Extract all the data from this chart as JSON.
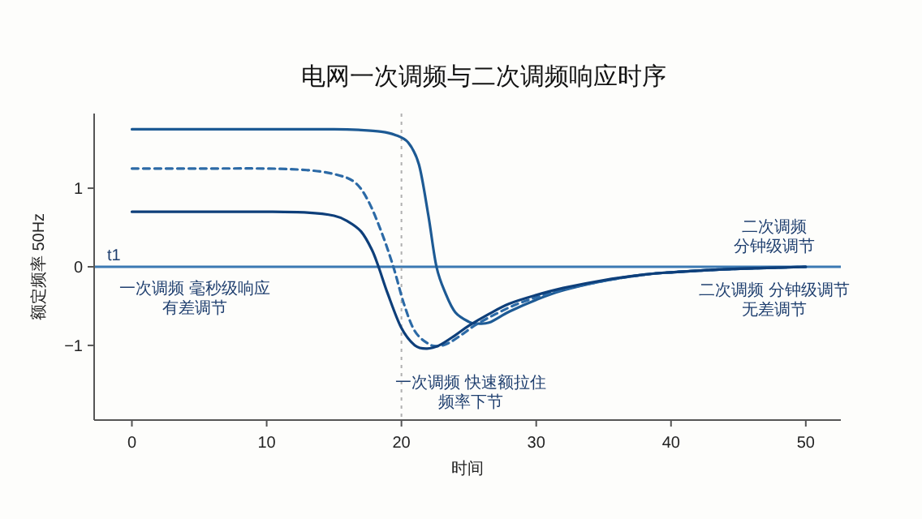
{
  "chart_data": {
    "type": "line",
    "title": "电网一次调频与二次调频响应时序",
    "xlabel": "时间",
    "ylabel": "额定频率 50Hz",
    "xlim": [
      -2.8,
      52.6
    ],
    "ylim": [
      -1.95,
      1.95
    ],
    "xticks": [
      0,
      10,
      20,
      30,
      40,
      50
    ],
    "yticks": [
      -1,
      0,
      1
    ],
    "marker": "none",
    "series": [
      {
        "color": "#1d5a94",
        "line_style": "solid",
        "x": [
          0,
          5,
          10,
          15,
          17,
          18.5,
          19.5,
          20.5,
          21.3,
          22,
          22.6,
          23.3,
          24,
          25,
          25.5,
          26.5,
          28,
          30,
          32,
          35,
          38,
          40,
          43,
          46,
          50
        ],
        "values": [
          1.75,
          1.75,
          1.75,
          1.75,
          1.74,
          1.72,
          1.68,
          1.58,
          1.3,
          0.65,
          0.0,
          -0.35,
          -0.58,
          -0.7,
          -0.72,
          -0.71,
          -0.57,
          -0.42,
          -0.3,
          -0.18,
          -0.1,
          -0.07,
          -0.04,
          -0.02,
          0
        ]
      },
      {
        "color": "#2c6aa6",
        "line_style": "dashed",
        "x": [
          0,
          5,
          10,
          13,
          15,
          16.5,
          17.5,
          18.5,
          19.4,
          20.2,
          21,
          22,
          22.7,
          23.5,
          24.5,
          25.5,
          27,
          28.5,
          30,
          32,
          35,
          38,
          40,
          43,
          46,
          50
        ],
        "values": [
          1.25,
          1.25,
          1.25,
          1.23,
          1.18,
          1.08,
          0.85,
          0.45,
          0.0,
          -0.48,
          -0.82,
          -0.98,
          -1.01,
          -0.97,
          -0.86,
          -0.74,
          -0.6,
          -0.48,
          -0.39,
          -0.29,
          -0.18,
          -0.1,
          -0.07,
          -0.04,
          -0.02,
          0
        ]
      },
      {
        "color": "#0e3f7a",
        "line_style": "solid",
        "x": [
          0,
          5,
          10,
          13,
          15,
          16,
          17,
          17.8,
          18.3,
          19,
          20,
          21,
          21.9,
          22.8,
          24,
          25,
          26.5,
          28,
          30,
          32,
          35,
          38,
          40,
          43,
          46,
          50
        ],
        "values": [
          0.7,
          0.7,
          0.7,
          0.69,
          0.65,
          0.58,
          0.45,
          0.22,
          0.0,
          -0.35,
          -0.78,
          -1.0,
          -1.04,
          -1.0,
          -0.87,
          -0.75,
          -0.6,
          -0.47,
          -0.36,
          -0.27,
          -0.17,
          -0.1,
          -0.07,
          -0.04,
          -0.02,
          0
        ]
      }
    ],
    "ref_lines": [
      {
        "axis": "y",
        "value": 0,
        "label": "t1",
        "color": "#3b79b3",
        "line_style": "solid"
      },
      {
        "axis": "x",
        "value": 20,
        "color": "#b0b0b0",
        "line_style": "dotted"
      }
    ],
    "annotations": [
      "一次调频 毫秒级响应",
      "有差调节",
      "一次调频 快速额拉住",
      "频率下节",
      "二次调频",
      "分钟级调节",
      "二次调频 分钟级调节",
      "无差调节"
    ]
  }
}
